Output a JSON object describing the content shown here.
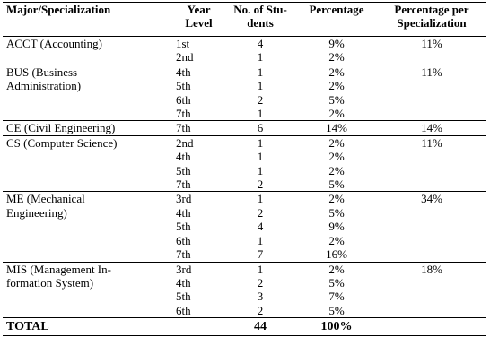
{
  "table": {
    "header": [
      "Major/Specialization",
      "Year\nLevel",
      "No. of Stu-\ndents",
      "Percentage",
      "Percentage per\nSpecialization"
    ],
    "groups": [
      {
        "major": "ACCT (Accounting)",
        "specialization_percentage": "11%",
        "rows": [
          [
            "1st",
            "4",
            "9%"
          ],
          [
            "2nd",
            "1",
            "2%"
          ]
        ]
      },
      {
        "major": "BUS (Business\nAdministration)",
        "specialization_percentage": "11%",
        "rows": [
          [
            "4th",
            "1",
            "2%"
          ],
          [
            "5th",
            "1",
            "2%"
          ],
          [
            "6th",
            "2",
            "5%"
          ],
          [
            "7th",
            "1",
            "2%"
          ]
        ]
      },
      {
        "major": "CE (Civil Engineering)",
        "specialization_percentage": "14%",
        "rows": [
          [
            "7th",
            "6",
            "14%"
          ]
        ]
      },
      {
        "major": "CS (Computer Science)",
        "specialization_percentage": "11%",
        "rows": [
          [
            "2nd",
            "1",
            "2%"
          ],
          [
            "4th",
            "1",
            "2%"
          ],
          [
            "5th",
            "1",
            "2%"
          ],
          [
            "7th",
            "2",
            "5%"
          ]
        ]
      },
      {
        "major": "ME (Mechanical\nEngineering)",
        "specialization_percentage": "34%",
        "rows": [
          [
            "3rd",
            "1",
            "2%"
          ],
          [
            "4th",
            "2",
            "5%"
          ],
          [
            "5th",
            "4",
            "9%"
          ],
          [
            "6th",
            "1",
            "2%"
          ],
          [
            "7th",
            "7",
            "16%"
          ]
        ]
      },
      {
        "major": "MIS (Management In-\nformation System)",
        "specialization_percentage": "18%",
        "rows": [
          [
            "3rd",
            "1",
            "2%"
          ],
          [
            "4th",
            "2",
            "5%"
          ],
          [
            "5th",
            "3",
            "7%"
          ],
          [
            "6th",
            "2",
            "5%"
          ]
        ]
      }
    ],
    "total": [
      "TOTAL",
      "44",
      "100%"
    ]
  }
}
